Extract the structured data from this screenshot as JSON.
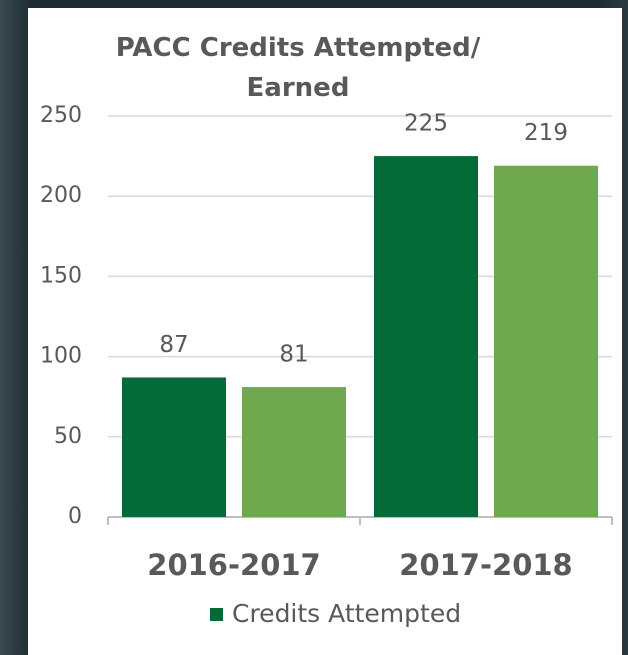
{
  "chart_data": {
    "type": "bar",
    "title": "PACC Credits Attempted/ Earned",
    "categories": [
      "2016-2017",
      "2017-2018"
    ],
    "series": [
      {
        "name": "Credits Attempted",
        "color": "#046a38",
        "values": [
          87,
          225
        ]
      },
      {
        "color": "#70a84f",
        "values": [
          81,
          219
        ]
      }
    ],
    "ylim": [
      0,
      250
    ],
    "yticks": [
      0,
      50,
      100,
      150,
      200,
      250
    ],
    "grid": true,
    "legend": "bottom"
  }
}
